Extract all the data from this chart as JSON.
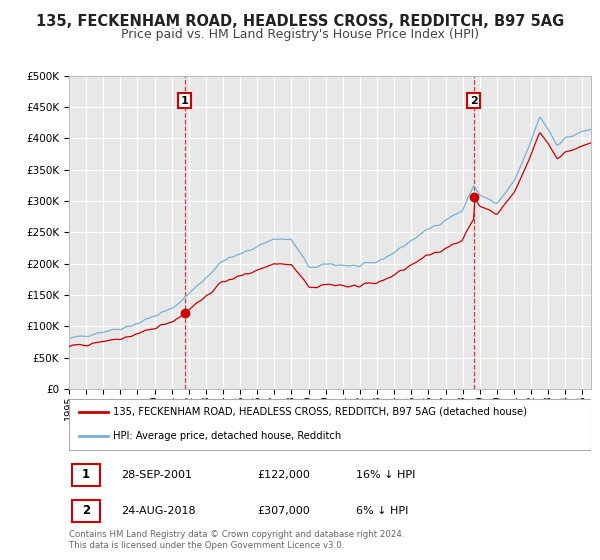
{
  "title": "135, FECKENHAM ROAD, HEADLESS CROSS, REDDITCH, B97 5AG",
  "subtitle": "Price paid vs. HM Land Registry's House Price Index (HPI)",
  "ylim": [
    0,
    500000
  ],
  "yticks": [
    0,
    50000,
    100000,
    150000,
    200000,
    250000,
    300000,
    350000,
    400000,
    450000,
    500000
  ],
  "ytick_labels": [
    "£0",
    "£50K",
    "£100K",
    "£150K",
    "£200K",
    "£250K",
    "£300K",
    "£350K",
    "£400K",
    "£450K",
    "£500K"
  ],
  "xlim_start": 1995.0,
  "xlim_end": 2025.5,
  "background_color": "#ffffff",
  "plot_bg_color": "#e8e8e8",
  "grid_color": "#ffffff",
  "title_fontsize": 10.5,
  "subtitle_fontsize": 9,
  "sale1_date": 2001.75,
  "sale1_price": 122000,
  "sale2_date": 2018.65,
  "sale2_price": 307000,
  "line_color_property": "#cc0000",
  "line_color_hpi": "#7ab0d4",
  "legend_label_property": "135, FECKENHAM ROAD, HEADLESS CROSS, REDDITCH, B97 5AG (detached house)",
  "legend_label_hpi": "HPI: Average price, detached house, Redditch",
  "annotation1_date": "28-SEP-2001",
  "annotation1_price": "£122,000",
  "annotation1_pct": "16% ↓ HPI",
  "annotation2_date": "24-AUG-2018",
  "annotation2_price": "£307,000",
  "annotation2_pct": "6% ↓ HPI",
  "footer": "Contains HM Land Registry data © Crown copyright and database right 2024.\nThis data is licensed under the Open Government Licence v3.0.",
  "xtick_years": [
    1995,
    1996,
    1997,
    1998,
    1999,
    2000,
    2001,
    2002,
    2003,
    2004,
    2005,
    2006,
    2007,
    2008,
    2009,
    2010,
    2011,
    2012,
    2013,
    2014,
    2015,
    2016,
    2017,
    2018,
    2019,
    2020,
    2021,
    2022,
    2023,
    2024,
    2025
  ]
}
